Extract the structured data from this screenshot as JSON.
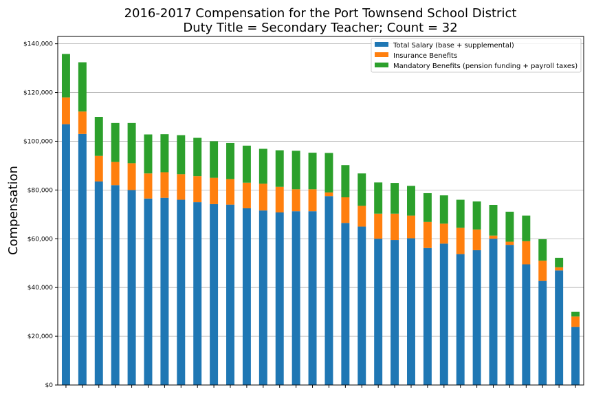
{
  "chart_data": {
    "type": "bar",
    "stacked": true,
    "title": [
      "2016-2017 Compensation for the Port Townsend School District",
      "Duty Title = Secondary Teacher; Count = 32"
    ],
    "xlabel": "",
    "ylabel": "Compensation",
    "ylim": [
      0,
      143000
    ],
    "yticks": [
      0,
      20000,
      40000,
      60000,
      80000,
      100000,
      120000,
      140000
    ],
    "ytick_labels": [
      "$0",
      "$20,000",
      "$40,000",
      "$60,000",
      "$80,000",
      "$100,000",
      "$120,000",
      "$140,000"
    ],
    "grid": "y",
    "legend_position": "top-right",
    "colors": [
      "#1f77b4",
      "#ff7f0e",
      "#2ca02c"
    ],
    "series": [
      {
        "name": "Total Salary (base + supplemental)",
        "values": [
          107000,
          103000,
          83500,
          82000,
          80000,
          76500,
          76800,
          76000,
          75000,
          74200,
          74000,
          72500,
          71600,
          70800,
          71300,
          71300,
          77500,
          66500,
          65000,
          60000,
          59500,
          60200,
          56200,
          58000,
          53700,
          55300,
          60000,
          57500,
          49500,
          42700,
          47000,
          23800
        ]
      },
      {
        "name": "Insurance Benefits",
        "values": [
          11000,
          9200,
          10500,
          9500,
          11000,
          10300,
          10500,
          10500,
          10700,
          10800,
          10500,
          10500,
          11000,
          10500,
          9000,
          9000,
          1500,
          10500,
          8500,
          10300,
          10800,
          9300,
          10700,
          8200,
          10800,
          8500,
          1300,
          1300,
          9500,
          8300,
          1300,
          4300
        ]
      },
      {
        "name": "Mandatory Benefits (pension funding + payroll taxes)",
        "values": [
          17800,
          20200,
          16000,
          16000,
          16500,
          16000,
          15600,
          16000,
          15700,
          15000,
          14800,
          15200,
          14300,
          15000,
          15800,
          15000,
          16200,
          13200,
          13300,
          12800,
          12600,
          12200,
          11800,
          11600,
          11500,
          11500,
          12600,
          12300,
          10500,
          8800,
          3900,
          1900
        ]
      }
    ]
  }
}
